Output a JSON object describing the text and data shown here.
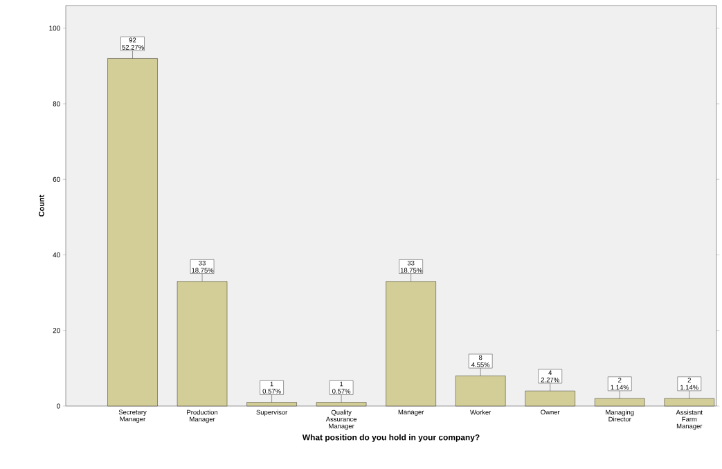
{
  "chart_data": {
    "type": "bar",
    "xlabel": "What position do you hold in your company?",
    "ylabel": "Count",
    "categories": [
      "Secretary Manager",
      "Production Manager",
      "Supervisor",
      "Quality Assurance Manager",
      "Manager",
      "Worker",
      "Owner",
      "Managing Director",
      "Assistant Farm Manager"
    ],
    "values": [
      92,
      33,
      1,
      1,
      33,
      8,
      4,
      2,
      2
    ],
    "value_labels": [
      "92 52.27%",
      "33 18.75%",
      "1 0.57%",
      "1 0.57%",
      "33 18.75%",
      "8 4.55%",
      "4 2.27%",
      "2 1.14%",
      "2 1.14%"
    ],
    "color": "#d3ce97",
    "ylim": [
      0,
      106
    ],
    "yticks": [
      0,
      20,
      40,
      60,
      80,
      100
    ],
    "grid": false
  }
}
